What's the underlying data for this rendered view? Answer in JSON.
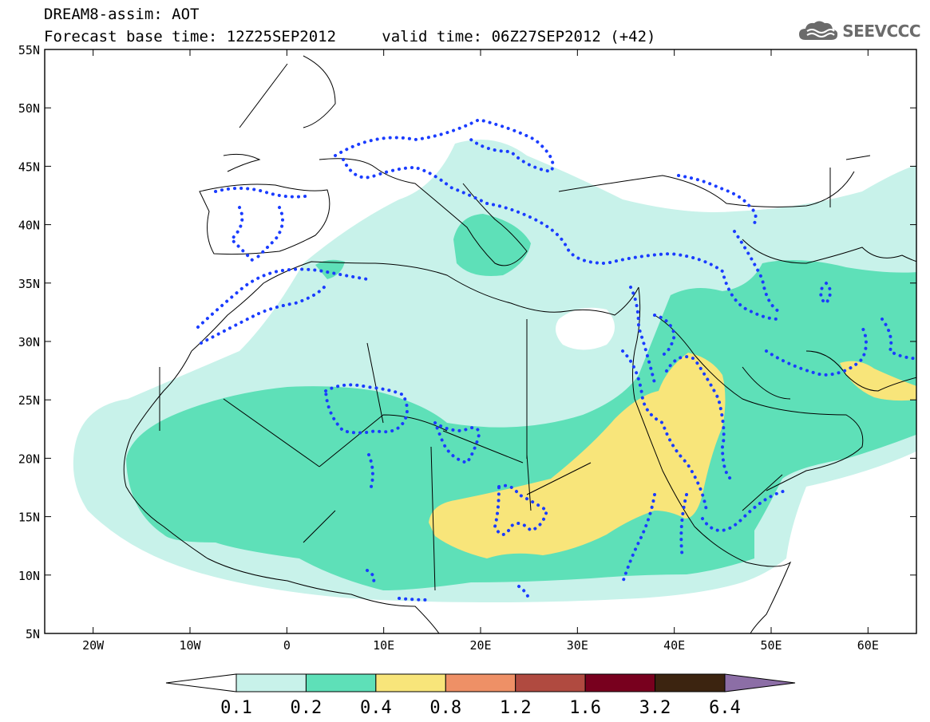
{
  "header": {
    "model_line": "DREAM8-assim: AOT",
    "base_time_label": "Forecast base time:",
    "base_time": "12Z25SEP2012",
    "valid_time_label": "valid time:",
    "valid_time": "06Z27SEP2012 (+42)"
  },
  "logo": {
    "text": "SEEVCCC",
    "icon": "cloud-icon"
  },
  "axes": {
    "lat_labels": [
      "55N",
      "50N",
      "45N",
      "40N",
      "35N",
      "30N",
      "25N",
      "20N",
      "15N",
      "10N",
      "5N"
    ],
    "lon_labels": [
      "20W",
      "10W",
      "0",
      "10E",
      "20E",
      "30E",
      "40E",
      "50E",
      "60E"
    ]
  },
  "colorbar": {
    "labels": [
      "0.1",
      "0.2",
      "0.4",
      "0.8",
      "1.2",
      "1.6",
      "3.2",
      "6.4"
    ],
    "colors": [
      "#ffffff",
      "#c8f2ea",
      "#5ee0b8",
      "#f8e57a",
      "#ee9066",
      "#b04a40",
      "#78001e",
      "#3c2410",
      "#8c6ea6"
    ]
  },
  "map": {
    "extent": {
      "lon": [
        -25,
        65
      ],
      "lat": [
        5,
        55
      ]
    },
    "level_colors": {
      "0.1": "#c8f2ea",
      "0.2": "#5ee0b8",
      "0.4": "#f8e57a"
    },
    "dotted_contour_color": "#1a3cff"
  }
}
